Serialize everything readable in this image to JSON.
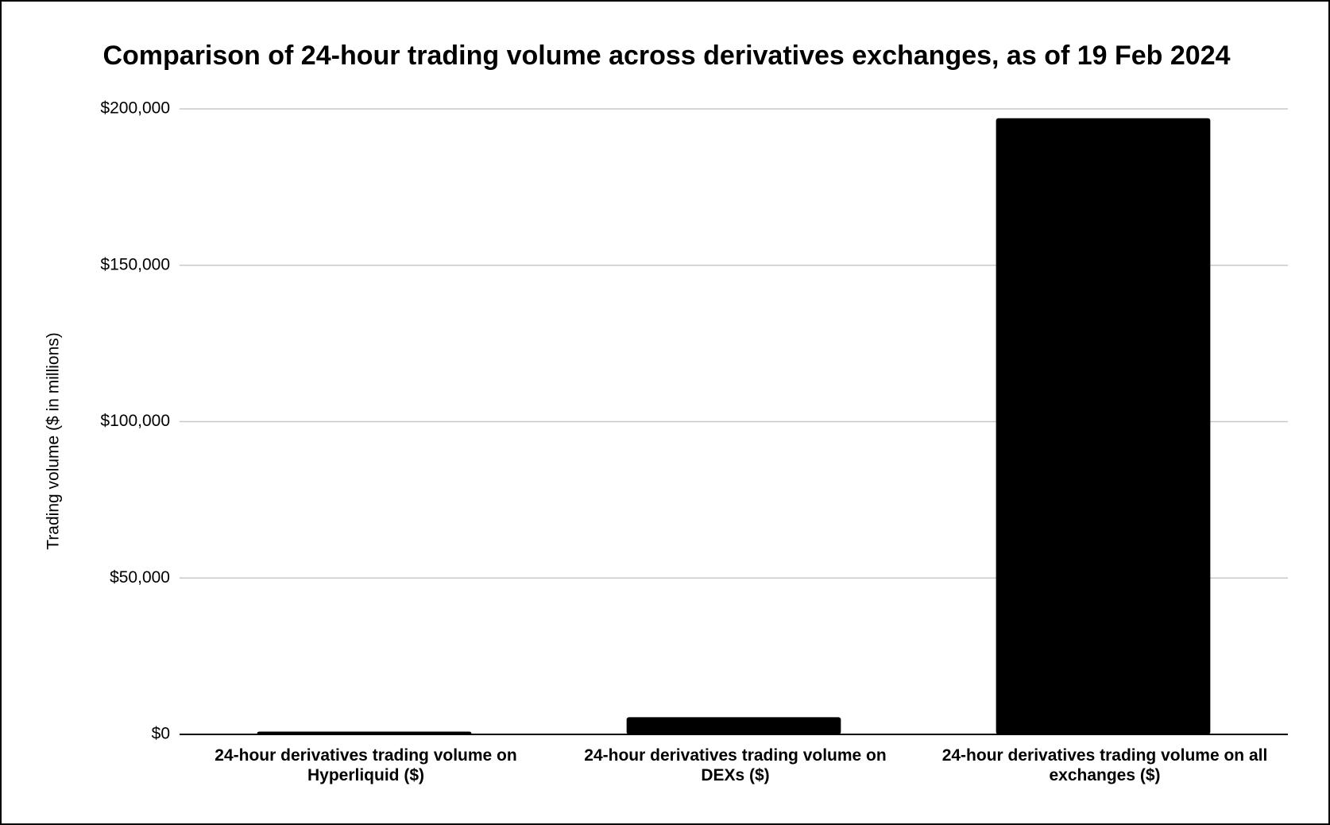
{
  "chart_data": {
    "type": "bar",
    "title": "Comparison of 24-hour trading volume across derivatives exchanges, as of 19 Feb 2024",
    "y_label": "Trading volume ($ in millions)",
    "categories": [
      "24-hour derivatives trading volume on Hyperliquid ($)",
      "24-hour derivatives trading volume on DEXs ($)",
      "24-hour derivatives trading volume on all exchanges ($)"
    ],
    "values": [
      900,
      5500,
      197000
    ],
    "color": "#000000",
    "ylim": [
      0,
      200000
    ],
    "yticks": [
      {
        "value": 0,
        "label": "$0"
      },
      {
        "value": 50000,
        "label": "$50,000"
      },
      {
        "value": 100000,
        "label": "$100,000"
      },
      {
        "value": 150000,
        "label": "$150,000"
      },
      {
        "value": 200000,
        "label": "$200,000"
      }
    ],
    "grid": true
  }
}
